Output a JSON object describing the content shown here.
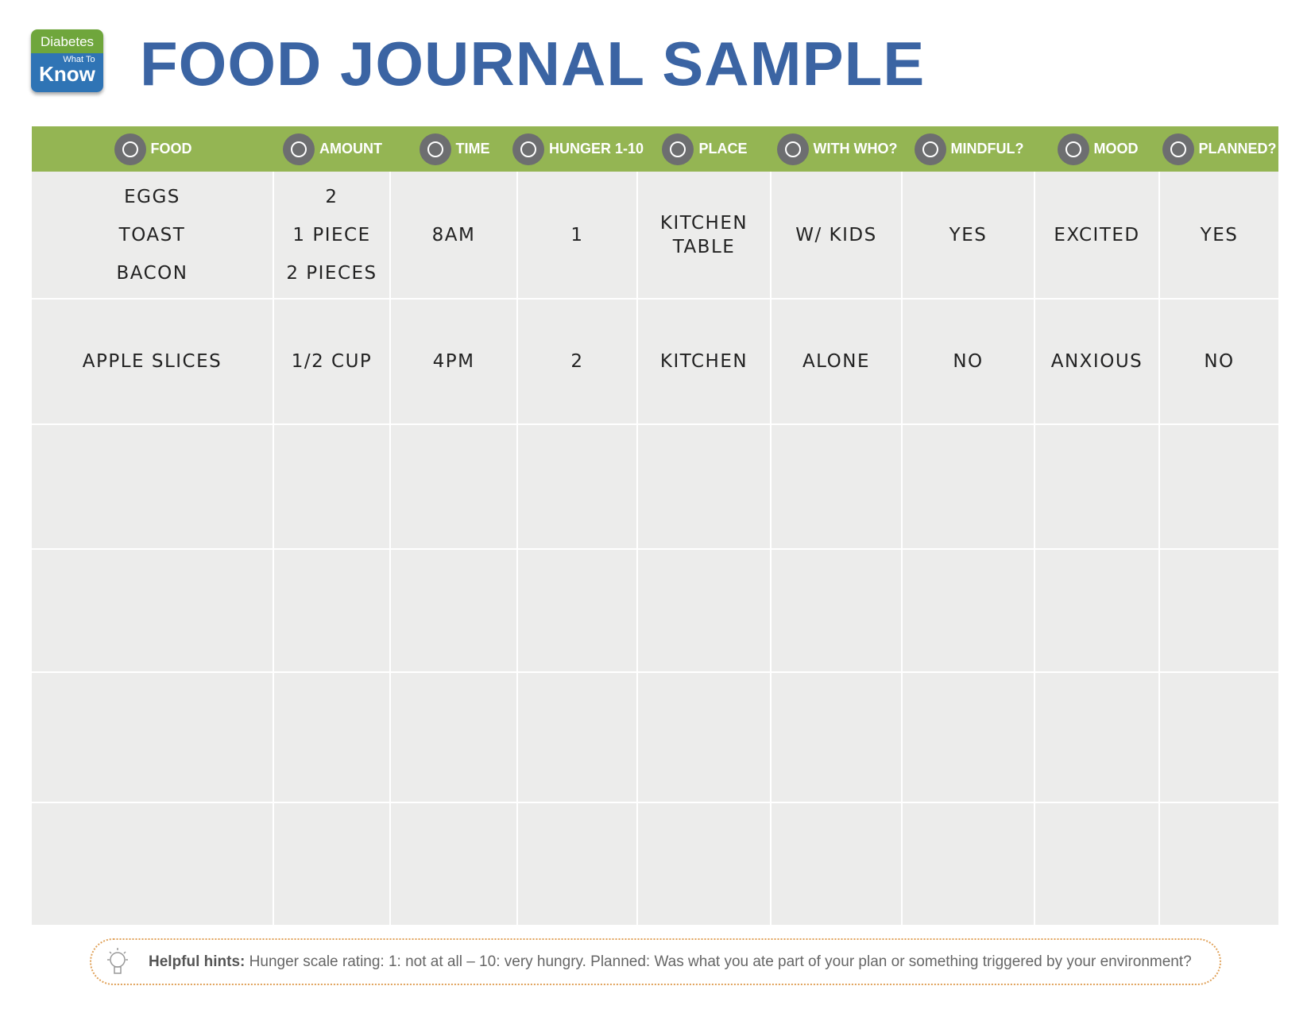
{
  "logo": {
    "line1": "Diabetes",
    "line2": "What To",
    "line3": "Know"
  },
  "header": {
    "title": "FOOD JOURNAL SAMPLE"
  },
  "table": {
    "columns": [
      "FOOD",
      "AMOUNT",
      "TIME",
      "HUNGER 1-10",
      "PLACE",
      "WITH WHO?",
      "MINDFUL?",
      "MOOD",
      "PLANNED?"
    ],
    "rows": [
      [
        [
          "EGGS",
          "TOAST",
          "BACON"
        ],
        [
          "2",
          "1 PIECE",
          "2 PIECES"
        ],
        [
          "8AM"
        ],
        [
          "1"
        ],
        [
          "KITCHEN",
          "TABLE"
        ],
        [
          "W/ KIDS"
        ],
        [
          "YES"
        ],
        [
          "EXCITED"
        ],
        [
          "YES"
        ]
      ],
      [
        [
          "APPLE SLICES"
        ],
        [
          "1/2 CUP"
        ],
        [
          "4PM"
        ],
        [
          "2"
        ],
        [
          "KITCHEN"
        ],
        [
          "ALONE"
        ],
        [
          "NO"
        ],
        [
          "ANXIOUS"
        ],
        [
          "NO"
        ]
      ]
    ]
  },
  "hints": {
    "label": "Helpful hints:",
    "text": "Hunger scale rating: 1: not at all – 10: very hungry. Planned: Was what you ate part of your plan or something triggered by your environment?"
  }
}
